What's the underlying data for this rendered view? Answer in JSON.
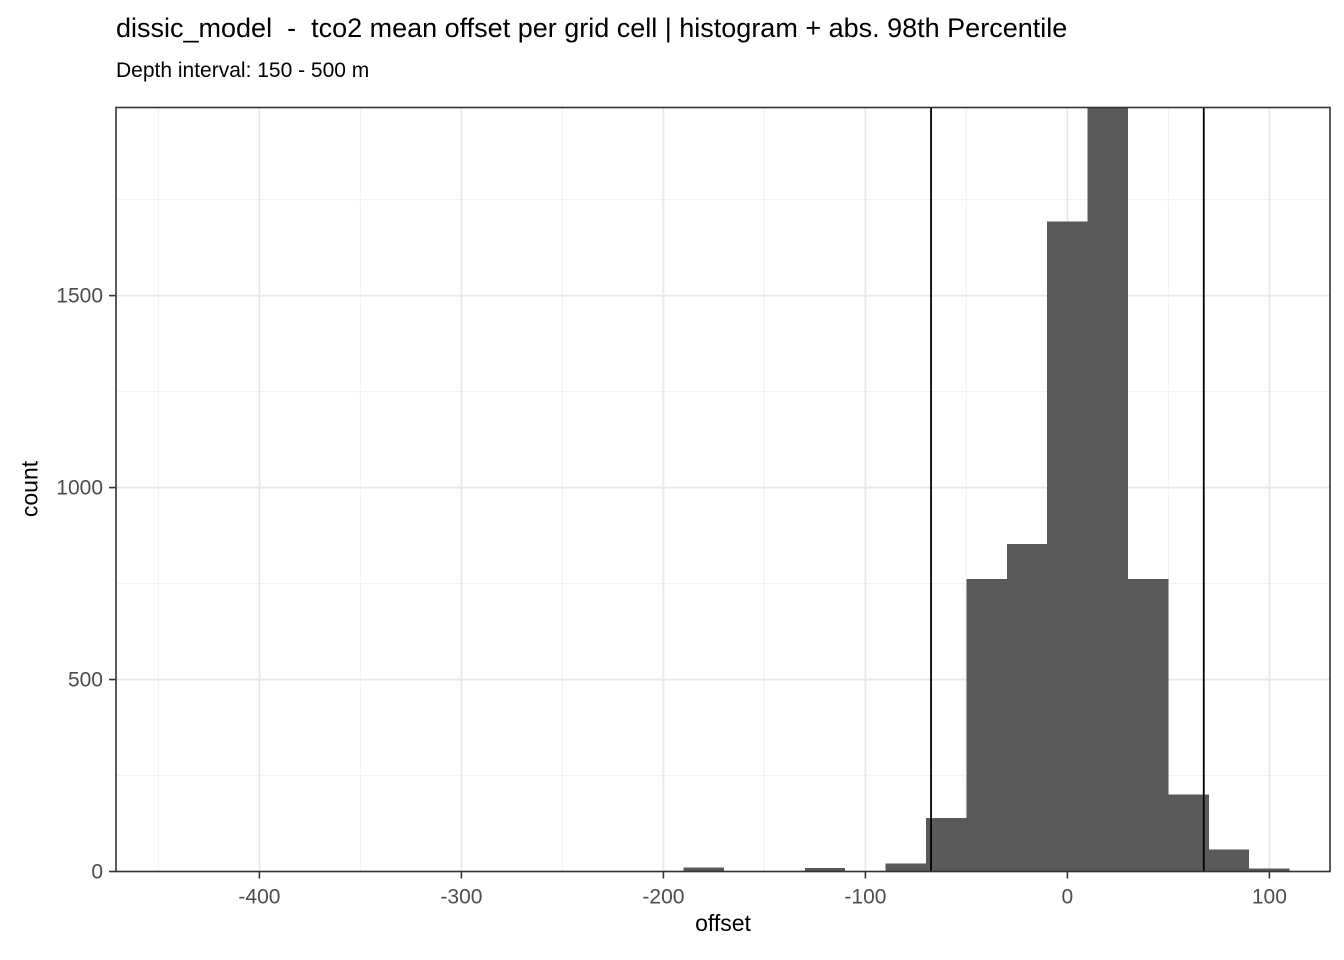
{
  "chart_data": {
    "type": "bar",
    "subtype": "histogram",
    "title": "dissic_model  -  tco2 mean offset per grid cell | histogram + abs. 98th Percentile",
    "subtitle": "Depth interval: 150 - 500 m",
    "xlabel": "offset",
    "ylabel": "count",
    "xlim": [
      -471,
      130
    ],
    "ylim": [
      0,
      1990
    ],
    "x_ticks": [
      -400,
      -300,
      -200,
      -100,
      0,
      100
    ],
    "x_minor_ticks": [
      -450,
      -350,
      -250,
      -150,
      -50,
      50
    ],
    "y_ticks": [
      0,
      500,
      1000,
      1500
    ],
    "y_minor_ticks": [
      250,
      750,
      1250,
      1750
    ],
    "grid": true,
    "legend": "none",
    "binwidth": 20,
    "bins": [
      {
        "x0": -190,
        "x1": -170,
        "count": 10
      },
      {
        "x0": -130,
        "x1": -110,
        "count": 9
      },
      {
        "x0": -90,
        "x1": -70,
        "count": 21
      },
      {
        "x0": -70,
        "x1": -50,
        "count": 140
      },
      {
        "x0": -50,
        "x1": -30,
        "count": 762
      },
      {
        "x0": -30,
        "x1": -10,
        "count": 853
      },
      {
        "x0": -10,
        "x1": 10,
        "count": 1693
      },
      {
        "x0": 10,
        "x1": 30,
        "count": 2050,
        "clipped_at_ylim": true
      },
      {
        "x0": 30,
        "x1": 50,
        "count": 762
      },
      {
        "x0": 50,
        "x1": 70,
        "count": 200
      },
      {
        "x0": 70,
        "x1": 90,
        "count": 57
      },
      {
        "x0": 90,
        "x1": 110,
        "count": 8
      }
    ],
    "vlines": {
      "label": "abs. 98th Percentile",
      "values": [
        -67.5,
        67.5
      ]
    },
    "colors": {
      "bar_fill": "#595959",
      "vline": "#000000",
      "panel_border": "#333333",
      "grid_major": "#E9E9E9",
      "grid_minor": "#F3F3F3",
      "axis_text": "#4D4D4D",
      "tick_mark": "#333333",
      "background": "#FFFFFF"
    }
  }
}
